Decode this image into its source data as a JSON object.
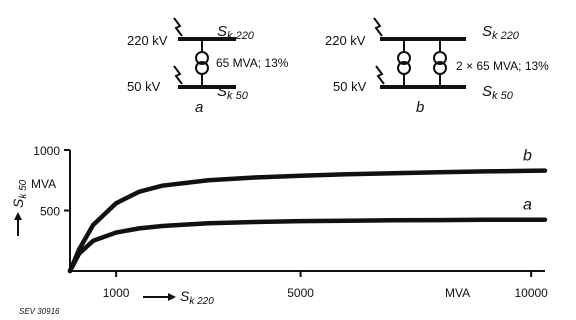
{
  "diagram_a": {
    "hv_label": "220 kV",
    "lv_label": "50 kV",
    "sk_hv_main": "S",
    "sk_hv_sub": "k 220",
    "sk_lv_main": "S",
    "sk_lv_sub": "k 50",
    "rating": "65 MVA; 13%",
    "caption": "a"
  },
  "diagram_b": {
    "hv_label": "220 kV",
    "lv_label": "50 kV",
    "sk_hv_main": "S",
    "sk_hv_sub": "k 220",
    "sk_lv_main": "S",
    "sk_lv_sub": "k 50",
    "rating": "2 × 65 MVA; 13%",
    "caption": "b"
  },
  "chart_data": {
    "type": "line",
    "xlabel_main": "S",
    "xlabel_sub": "k 220",
    "xunit": "MVA",
    "ylabel_main": "S",
    "ylabel_sub": "k 50",
    "yunit": "MVA",
    "xlim": [
      0,
      10300
    ],
    "ylim": [
      0,
      1000
    ],
    "xticks": [
      1000,
      5000,
      10000
    ],
    "xtick_labels": [
      "1000",
      "5000",
      "10000"
    ],
    "yticks": [
      500,
      1000
    ],
    "ytick_labels": [
      "500",
      "1000"
    ],
    "grid": false,
    "series": [
      {
        "name": "a",
        "x": [
          0,
          200,
          500,
          1000,
          1500,
          2000,
          3000,
          4000,
          5000,
          6000,
          7000,
          8000,
          9000,
          10000,
          10300
        ],
        "y": [
          0,
          145,
          250,
          318,
          352,
          372,
          394,
          405,
          412,
          416,
          419,
          421,
          423,
          424,
          424
        ]
      },
      {
        "name": "b",
        "x": [
          0,
          200,
          500,
          1000,
          1500,
          2000,
          3000,
          4000,
          5000,
          6000,
          7000,
          8000,
          9000,
          10000,
          10300
        ],
        "y": [
          0,
          180,
          380,
          560,
          655,
          705,
          750,
          773,
          788,
          799,
          808,
          816,
          823,
          828,
          830
        ]
      }
    ]
  },
  "footer": {
    "ref": "SEV 30916"
  }
}
